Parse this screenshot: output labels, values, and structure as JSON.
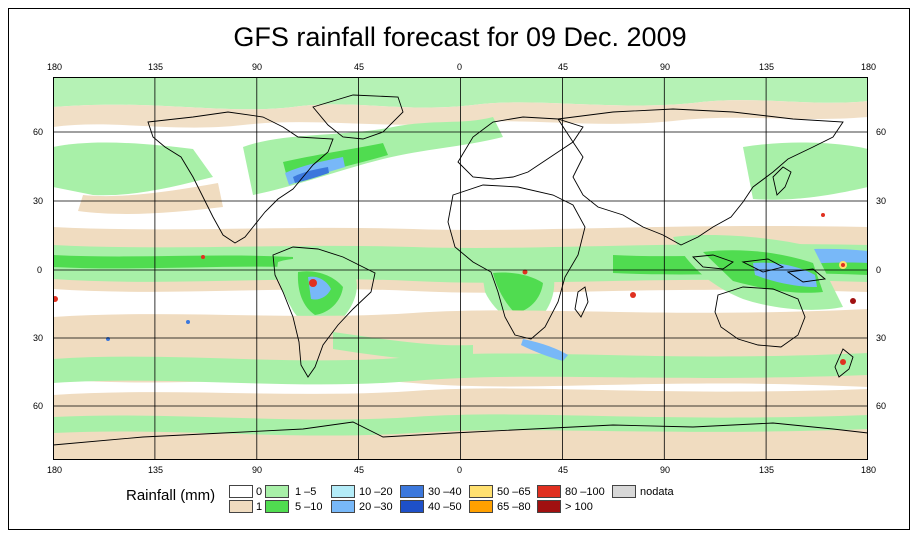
{
  "title": "GFS rainfall forecast for 09 Dec. 2009",
  "axes": {
    "lon_ticks": [
      "180",
      "135",
      "90",
      "45",
      "0",
      "45",
      "90",
      "135",
      "180"
    ],
    "lat_ticks_left": [
      "60",
      "30",
      "0",
      "30",
      "60"
    ],
    "lat_ticks_right": [
      "60",
      "30",
      "0",
      "30",
      "60"
    ]
  },
  "legend": {
    "title": "Rainfall (mm)",
    "classes": [
      {
        "label": "0",
        "color": "#ffffff"
      },
      {
        "label": "1",
        "color": "#f0dcc0"
      },
      {
        "label": "1 –5",
        "color": "#a8f0a8"
      },
      {
        "label": "5 –10",
        "color": "#50dc50"
      },
      {
        "label": "10 –20",
        "color": "#b4ecf8"
      },
      {
        "label": "20 –30",
        "color": "#78b8f8"
      },
      {
        "label": "30 –40",
        "color": "#3c78dc"
      },
      {
        "label": "40 –50",
        "color": "#1e50c8"
      },
      {
        "label": "50 –65",
        "color": "#ffe070"
      },
      {
        "label": "65 –80",
        "color": "#ffa000"
      },
      {
        "label": "80 –100",
        "color": "#e03020"
      },
      {
        "label": "> 100",
        "color": "#a01010"
      },
      {
        "label": "nodata",
        "color": "#d8d8d8"
      }
    ]
  },
  "map_colors": {
    "ocean": "#ffffff",
    "rain_1": "#f0dcc0",
    "rain_1_5": "#a8f0a8",
    "rain_5_10": "#50dc50",
    "rain_10_20": "#b4ecf8",
    "rain_20_30": "#78b8f8",
    "rain_30_40": "#3c78dc",
    "rain_50_65": "#ffe070",
    "rain_80_100": "#e03020",
    "coast": "#000000",
    "grid": "#000000"
  }
}
